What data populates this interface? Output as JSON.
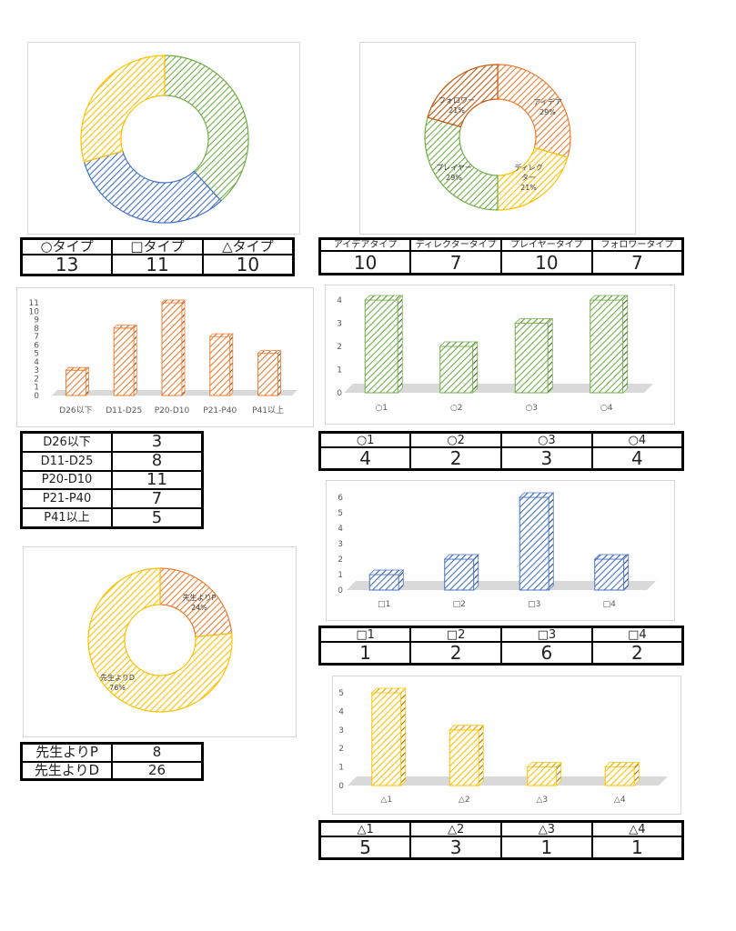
{
  "colors": {
    "green": "#70ad47",
    "blue": "#4472c4",
    "yellow": "#ffc000",
    "orange": "#ed7d31"
  },
  "chart_data": [
    {
      "id": "c1",
      "type": "pie",
      "donut": true,
      "categories": [
        "○タイプ",
        "□タイプ",
        "△タイプ"
      ],
      "values": [
        13,
        11,
        10
      ],
      "data_labels": [
        "",
        "",
        ""
      ]
    },
    {
      "id": "c2",
      "type": "pie",
      "donut": true,
      "categories": [
        "アイデア",
        "ディレクター",
        "プレイヤー",
        "フォロワー"
      ],
      "values": [
        10,
        7,
        10,
        7
      ],
      "data_labels": [
        "29%",
        "21%",
        "29%",
        "21%"
      ]
    },
    {
      "id": "c3",
      "type": "bar",
      "categories": [
        "D26以下",
        "D11-D25",
        "P20-D10",
        "P21-P40",
        "P41以上"
      ],
      "values": [
        3,
        8,
        11,
        7,
        5
      ],
      "ylim": [
        0,
        11
      ],
      "yticks": [
        0,
        1,
        2,
        3,
        4,
        5,
        6,
        7,
        8,
        9,
        10,
        11
      ]
    },
    {
      "id": "c4",
      "type": "bar",
      "categories": [
        "○1",
        "○2",
        "○3",
        "○4"
      ],
      "values": [
        4,
        2,
        3,
        4
      ],
      "ylim": [
        0,
        4
      ],
      "yticks": [
        0,
        1,
        2,
        3,
        4
      ]
    },
    {
      "id": "c5",
      "type": "bar",
      "categories": [
        "□1",
        "□2",
        "□3",
        "□4"
      ],
      "values": [
        1,
        2,
        6,
        2
      ],
      "ylim": [
        0,
        6
      ],
      "yticks": [
        0,
        1,
        2,
        3,
        4,
        5,
        6
      ]
    },
    {
      "id": "c6",
      "type": "pie",
      "donut": true,
      "categories": [
        "先生よりP",
        "先生よりD"
      ],
      "values": [
        8,
        26
      ],
      "data_labels": [
        "24%",
        "76%"
      ]
    },
    {
      "id": "c7",
      "type": "bar",
      "categories": [
        "△1",
        "△2",
        "△3",
        "△4"
      ],
      "values": [
        5,
        3,
        1,
        1
      ],
      "ylim": [
        0,
        5
      ],
      "yticks": [
        0,
        1,
        2,
        3,
        4,
        5
      ]
    }
  ],
  "tables": {
    "t1": {
      "headers": [
        "○タイプ",
        "□タイプ",
        "△タイプ"
      ],
      "values": [
        "13",
        "11",
        "10"
      ]
    },
    "t2": {
      "headers": [
        "アイデアタイプ",
        "ディレクタータイプ",
        "プレイヤータイプ",
        "フォロワータイプ"
      ],
      "values": [
        "10",
        "7",
        "10",
        "7"
      ]
    },
    "t3": {
      "rows": [
        [
          "D26以下",
          "3"
        ],
        [
          "D11-D25",
          "8"
        ],
        [
          "P20-D10",
          "11"
        ],
        [
          "P21-P40",
          "7"
        ],
        [
          "P41以上",
          "5"
        ]
      ]
    },
    "t4": {
      "headers": [
        "○1",
        "○2",
        "○3",
        "○4"
      ],
      "values": [
        "4",
        "2",
        "3",
        "4"
      ]
    },
    "t5": {
      "headers": [
        "□1",
        "□2",
        "□3",
        "□4"
      ],
      "values": [
        "1",
        "2",
        "6",
        "2"
      ]
    },
    "t6": {
      "rows": [
        [
          "先生よりP",
          "8"
        ],
        [
          "先生よりD",
          "26"
        ]
      ]
    },
    "t7": {
      "headers": [
        "△1",
        "△2",
        "△3",
        "△4"
      ],
      "values": [
        "5",
        "3",
        "1",
        "1"
      ]
    }
  }
}
